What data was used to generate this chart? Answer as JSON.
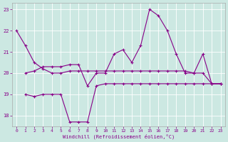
{
  "bg_color": "#cce8e2",
  "line_color": "#880088",
  "xlabel": "Windchill (Refroidissement éolien,°C)",
  "xmin": -0.5,
  "xmax": 23.5,
  "ymin": 17.5,
  "ymax": 23.3,
  "yticks": [
    18,
    19,
    20,
    21,
    22,
    23
  ],
  "xticks": [
    0,
    1,
    2,
    3,
    4,
    5,
    6,
    7,
    8,
    9,
    10,
    11,
    12,
    13,
    14,
    15,
    16,
    17,
    18,
    19,
    20,
    21,
    22,
    23
  ],
  "series": [
    {
      "x": [
        0,
        1,
        2,
        3,
        4,
        5,
        6,
        7,
        8,
        9,
        10,
        11,
        12,
        13,
        14,
        15,
        16,
        17,
        18,
        19,
        20,
        21,
        22,
        23
      ],
      "y": [
        22.0,
        21.3,
        20.5,
        20.2,
        20.0,
        20.0,
        20.1,
        20.1,
        20.1,
        20.1,
        20.1,
        20.1,
        20.1,
        20.1,
        20.1,
        20.1,
        20.1,
        20.1,
        20.1,
        20.1,
        20.0,
        20.0,
        19.5,
        19.5
      ]
    },
    {
      "x": [
        1,
        2,
        3,
        4,
        5,
        6,
        7,
        8,
        9,
        10,
        11,
        12,
        13,
        14,
        15,
        16,
        17,
        18,
        19,
        20,
        21,
        22,
        23
      ],
      "y": [
        19.0,
        18.9,
        19.0,
        19.0,
        19.0,
        17.7,
        17.7,
        17.7,
        19.4,
        19.5,
        19.5,
        19.5,
        19.5,
        19.5,
        19.5,
        19.5,
        19.5,
        19.5,
        19.5,
        19.5,
        19.5,
        19.5,
        19.5
      ]
    },
    {
      "x": [
        1,
        2,
        3,
        4,
        5,
        6,
        7,
        8,
        9,
        10,
        11,
        12,
        13,
        14,
        15,
        16,
        17,
        18,
        19,
        20,
        21,
        22,
        23
      ],
      "y": [
        20.0,
        20.1,
        20.3,
        20.3,
        20.3,
        20.4,
        20.4,
        19.4,
        20.0,
        20.0,
        20.9,
        21.1,
        20.5,
        21.3,
        23.0,
        22.7,
        22.0,
        20.9,
        20.0,
        20.0,
        20.9,
        19.5,
        19.5
      ]
    }
  ]
}
